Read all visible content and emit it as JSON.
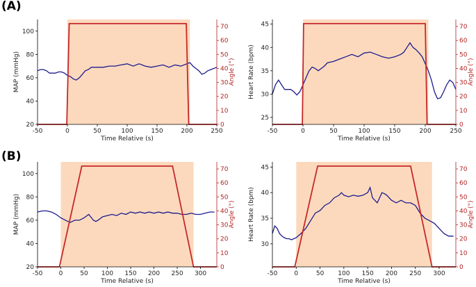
{
  "panel_labels": [
    "(A)",
    "(B)"
  ],
  "colors": {
    "physio_line": "#1a1a8c",
    "angle_line": "#c62828",
    "tilt_shade": "#fcd9bd",
    "right_axis": "#b22222"
  },
  "chart_data": [
    {
      "id": "A-map",
      "type": "line",
      "xlabel": "Time Relative (s)",
      "ylabel": "MAP (mmHg)",
      "y2label": "Angle (°)",
      "xlim": [
        -50,
        250
      ],
      "ylim": [
        20,
        110
      ],
      "y2lim": [
        0,
        75
      ],
      "xticks": [
        -50,
        0,
        50,
        100,
        150,
        200,
        250
      ],
      "yticks": [
        20,
        40,
        60,
        80,
        100
      ],
      "y2ticks": [
        0,
        10,
        20,
        30,
        40,
        50,
        60,
        70
      ],
      "shade": [
        0,
        205
      ],
      "series": [
        {
          "x": [
            -50,
            -45,
            -40,
            -35,
            -30,
            -25,
            -20,
            -15,
            -10,
            -5,
            0,
            5,
            10,
            15,
            20,
            25,
            30,
            35,
            40,
            50,
            60,
            70,
            80,
            90,
            100,
            110,
            120,
            130,
            140,
            150,
            160,
            170,
            180,
            190,
            200,
            205,
            210,
            215,
            220,
            225,
            230,
            235,
            240,
            245,
            250
          ],
          "values": [
            66,
            67,
            67,
            66,
            64,
            64,
            64,
            65,
            65,
            64,
            62,
            61,
            59,
            58,
            60,
            63,
            66,
            67,
            69,
            69,
            69,
            70,
            70,
            71,
            72,
            70,
            72,
            70,
            69,
            70,
            71,
            69,
            71,
            70,
            72,
            73,
            70,
            68,
            66,
            63,
            64,
            66,
            67,
            68,
            69
          ]
        },
        {
          "x": [
            -50,
            -1,
            3,
            199,
            203,
            250
          ],
          "values": [
            0,
            0,
            72,
            72,
            0,
            0
          ]
        }
      ]
    },
    {
      "id": "A-hr",
      "type": "line",
      "xlabel": "Time Relative (s)",
      "ylabel": "Heart Rate (bpm)",
      "y2label": "Angle (°)",
      "xlim": [
        -50,
        250
      ],
      "ylim": [
        23.5,
        46
      ],
      "y2lim": [
        0,
        75
      ],
      "xticks": [
        -50,
        0,
        50,
        100,
        150,
        200,
        250
      ],
      "yticks": [
        25,
        30,
        35,
        40,
        45
      ],
      "y2ticks": [
        0,
        10,
        20,
        30,
        40,
        50,
        60,
        70
      ],
      "shade": [
        0,
        205
      ],
      "series": [
        {
          "x": [
            -50,
            -45,
            -40,
            -35,
            -30,
            -25,
            -20,
            -15,
            -10,
            -5,
            0,
            5,
            10,
            15,
            20,
            25,
            30,
            35,
            40,
            50,
            60,
            70,
            80,
            90,
            100,
            110,
            120,
            130,
            140,
            150,
            160,
            165,
            170,
            175,
            180,
            185,
            190,
            195,
            200,
            205,
            210,
            215,
            220,
            225,
            230,
            235,
            240,
            245,
            250
          ],
          "values": [
            30,
            32,
            33,
            32,
            31,
            31,
            31,
            30.5,
            29.8,
            30.5,
            32,
            33.5,
            35,
            35.8,
            35.5,
            35,
            35.5,
            36,
            36.7,
            37,
            37.5,
            38,
            38.5,
            38,
            38.8,
            39,
            38.5,
            38,
            37.7,
            38,
            38.5,
            39,
            40,
            41,
            40,
            39.5,
            38.8,
            38,
            36.5,
            35,
            33,
            30.5,
            29,
            29.2,
            30.5,
            32,
            33,
            32.5,
            31
          ]
        },
        {
          "x": [
            -50,
            -1,
            1,
            200,
            203,
            250
          ],
          "values": [
            0,
            0,
            72,
            72,
            0,
            0
          ]
        }
      ]
    },
    {
      "id": "B-map",
      "type": "line",
      "xlabel": "Time Relative (s)",
      "ylabel": "MAP (mmHg)",
      "y2label": "Angle (°)",
      "xlim": [
        -50,
        335
      ],
      "ylim": [
        20,
        110
      ],
      "y2lim": [
        0,
        75
      ],
      "xticks": [
        -50,
        0,
        50,
        100,
        150,
        200,
        250,
        300
      ],
      "yticks": [
        20,
        40,
        60,
        80,
        100
      ],
      "y2ticks": [
        0,
        10,
        20,
        30,
        40,
        50,
        60,
        70
      ],
      "shade": [
        0,
        285
      ],
      "series": [
        {
          "x": [
            -50,
            -40,
            -30,
            -20,
            -10,
            0,
            10,
            20,
            30,
            40,
            50,
            60,
            70,
            75,
            80,
            90,
            100,
            110,
            120,
            130,
            140,
            150,
            160,
            170,
            180,
            190,
            200,
            210,
            220,
            230,
            240,
            250,
            260,
            270,
            280,
            290,
            300,
            310,
            320,
            330
          ],
          "values": [
            67,
            68,
            68,
            67,
            65,
            62,
            60,
            58,
            60,
            60,
            62,
            65,
            60,
            59,
            60,
            63,
            64,
            65,
            64,
            66,
            65,
            67,
            66,
            67,
            66,
            67,
            66,
            67,
            66,
            67,
            66,
            66,
            65,
            65,
            66,
            65,
            65,
            66,
            67,
            67
          ]
        },
        {
          "x": [
            -50,
            -3,
            45,
            240,
            285,
            335
          ],
          "values": [
            0,
            0,
            72,
            72,
            0,
            0
          ]
        }
      ]
    },
    {
      "id": "B-hr",
      "type": "line",
      "xlabel": "Time Relative (s)",
      "ylabel": "Heart Rate (bpm)",
      "y2label": "Angle (°)",
      "xlim": [
        -50,
        335
      ],
      "ylim": [
        25.5,
        46
      ],
      "y2lim": [
        0,
        75
      ],
      "xticks": [
        -50,
        0,
        50,
        100,
        150,
        200,
        250,
        300
      ],
      "yticks": [
        30,
        35,
        40,
        45
      ],
      "y2ticks": [
        0,
        10,
        20,
        30,
        40,
        50,
        60,
        70
      ],
      "shade": [
        0,
        285
      ],
      "series": [
        {
          "x": [
            -50,
            -45,
            -40,
            -35,
            -30,
            -25,
            -20,
            -15,
            -10,
            -5,
            0,
            10,
            20,
            30,
            40,
            50,
            60,
            70,
            80,
            90,
            95,
            100,
            110,
            120,
            130,
            140,
            150,
            155,
            160,
            165,
            170,
            175,
            180,
            185,
            190,
            195,
            200,
            210,
            220,
            230,
            240,
            250,
            260,
            270,
            280,
            290,
            300,
            310,
            320,
            330
          ],
          "values": [
            32,
            33.5,
            33,
            32,
            31.5,
            31.2,
            31,
            31,
            30.8,
            31,
            31.2,
            32,
            33,
            34.5,
            36,
            36.5,
            37.5,
            38,
            39,
            39.5,
            40,
            39.5,
            39.2,
            39.5,
            39.3,
            39.5,
            40,
            41,
            39,
            38.5,
            38,
            39,
            40,
            39.8,
            39.5,
            39,
            38.5,
            38,
            38.5,
            38,
            38,
            37.5,
            36,
            35,
            34.5,
            34,
            33,
            32,
            31.5,
            31.5
          ]
        },
        {
          "x": [
            -50,
            -3,
            45,
            240,
            285,
            335
          ],
          "values": [
            0,
            0,
            72,
            72,
            0,
            0
          ]
        }
      ]
    }
  ]
}
